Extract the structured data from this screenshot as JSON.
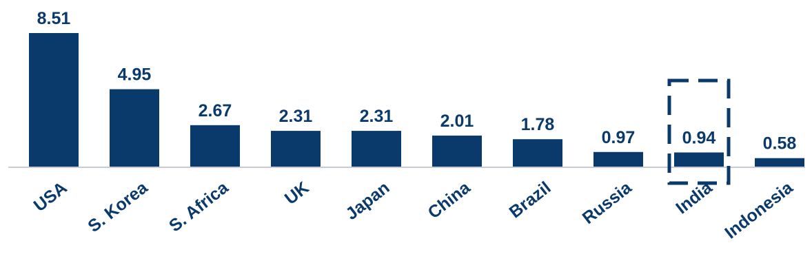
{
  "chart_data": {
    "type": "bar",
    "categories": [
      "USA",
      "S. Korea",
      "S. Africa",
      "UK",
      "Japan",
      "China",
      "Brazil",
      "Russia",
      "India",
      "Indonesia"
    ],
    "values": [
      8.51,
      4.95,
      2.67,
      2.31,
      2.31,
      2.01,
      1.78,
      0.97,
      0.94,
      0.58
    ],
    "value_labels": [
      "8.51",
      "4.95",
      "2.67",
      "2.31",
      "2.31",
      "2.01",
      "1.78",
      "0.97",
      "0.94",
      "0.58"
    ],
    "highlight_category": "India",
    "highlight_style": "dashed-box",
    "ylim": [
      0,
      8.51
    ],
    "grid": false,
    "legend": "none",
    "title": "",
    "xlabel": "",
    "ylabel": "",
    "colors": {
      "bar": "#0a3a6b",
      "label": "#0a3a6b",
      "axis": "#c8ccd2",
      "highlight": "#0a3a6b"
    }
  }
}
